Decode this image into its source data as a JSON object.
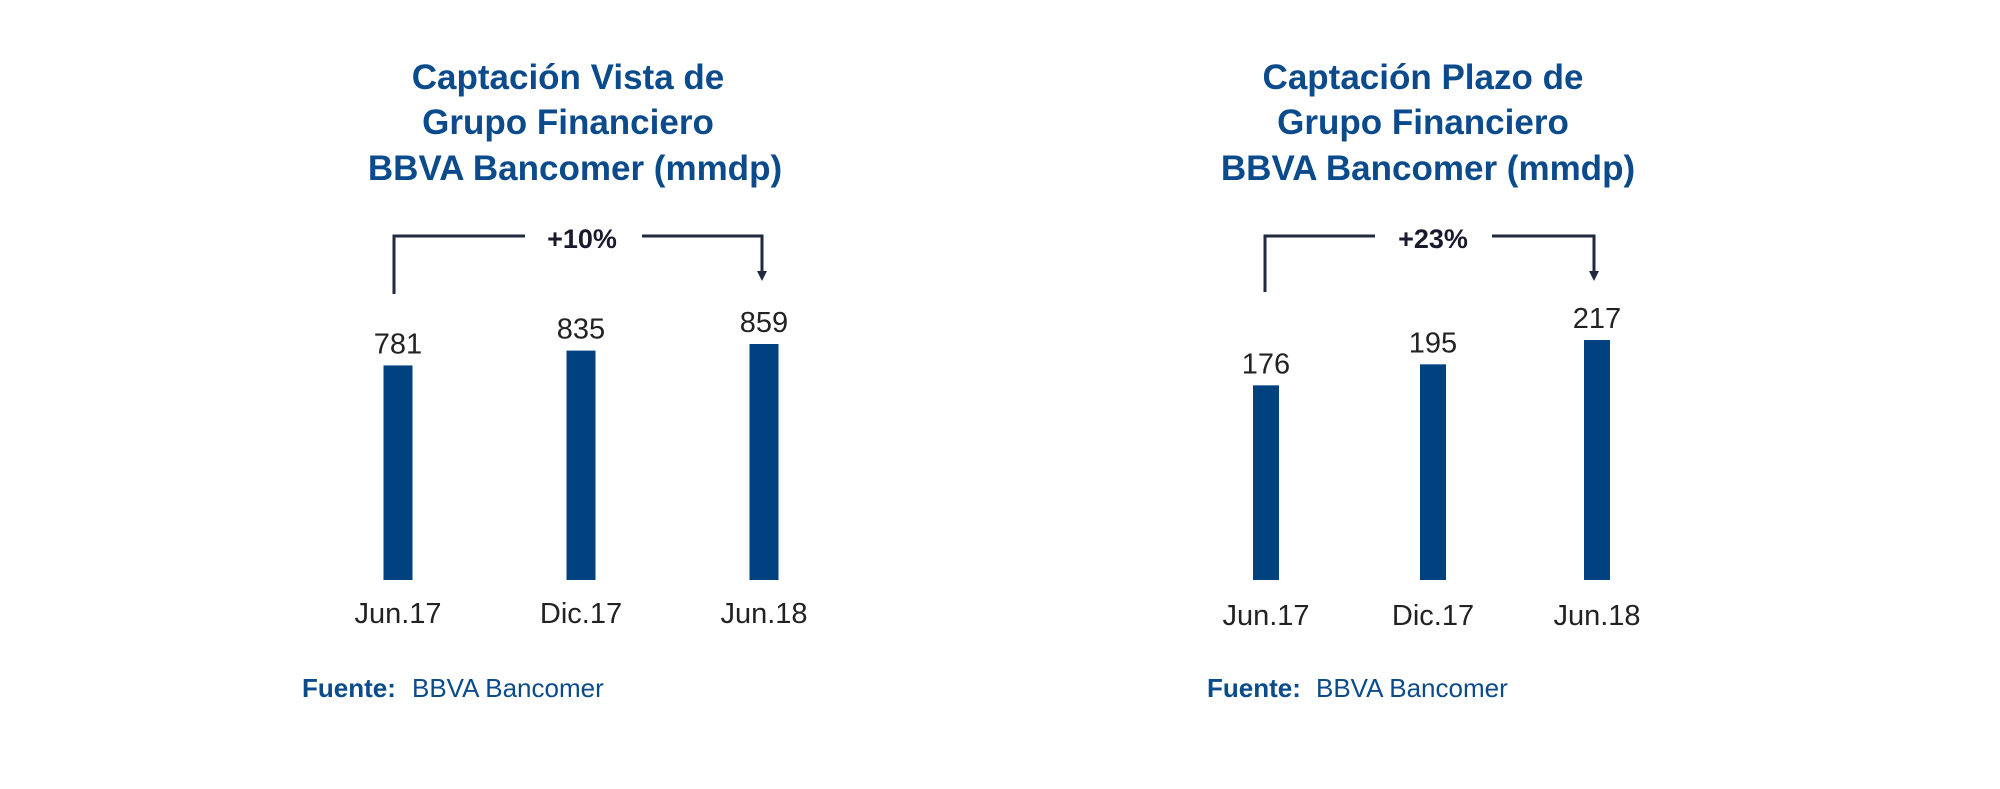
{
  "colors": {
    "bar": "#00427f",
    "title": "#0b4a8b",
    "bracket": "#1f2a3d"
  },
  "chart_data": [
    {
      "type": "bar",
      "title_lines": [
        "Captación Vista de",
        "Grupo Financiero",
        "BBVA  Bancomer (mmdp)"
      ],
      "categories": [
        "Jun.17",
        "Dic.17",
        "Jun.18"
      ],
      "values": [
        781,
        835,
        859
      ],
      "value_labels": [
        "781",
        "835",
        "859"
      ],
      "change_annotation": "+10%",
      "source_label": "Fuente:",
      "source_value": "BBVA Bancomer",
      "ylim": [
        0,
        859
      ],
      "grid": false,
      "legend": "none"
    },
    {
      "type": "bar",
      "title_lines": [
        "Captación Plazo de",
        "Grupo Financiero",
        "BBVA  Bancomer (mmdp)"
      ],
      "categories": [
        "Jun.17",
        "Dic.17",
        "Jun.18"
      ],
      "values": [
        176,
        195,
        217
      ],
      "value_labels": [
        "176",
        "195",
        "217"
      ],
      "change_annotation": "+23%",
      "source_label": "Fuente:",
      "source_value": "BBVA Bancomer",
      "ylim": [
        0,
        217
      ],
      "grid": false,
      "legend": "none"
    }
  ]
}
